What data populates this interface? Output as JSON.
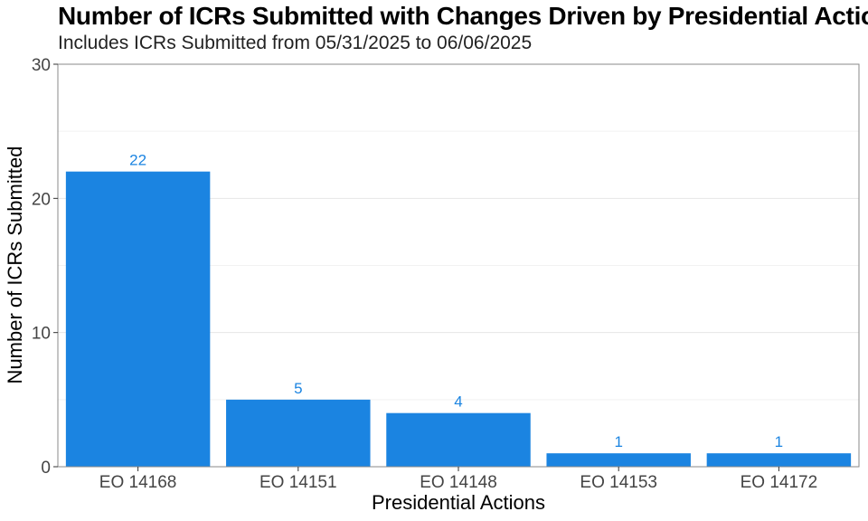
{
  "chart_data": {
    "type": "bar",
    "title": "Number of ICRs Submitted with Changes Driven by Presidential Actions",
    "subtitle": "Includes ICRs Submitted from 05/31/2025 to 06/06/2025",
    "categories": [
      "EO 14168",
      "EO 14151",
      "EO 14148",
      "EO 14153",
      "EO 14172"
    ],
    "values": [
      22,
      5,
      4,
      1,
      1
    ],
    "data_labels": [
      "22",
      "5",
      "4",
      "1",
      "1"
    ],
    "xlabel": "Presidential Actions",
    "ylabel": "Number of ICRs Submitted",
    "ylim": [
      0,
      30
    ],
    "yticks": [
      0,
      10,
      20,
      30
    ],
    "grid": true,
    "legend": "none",
    "colors": {
      "bar": "#1b84e1",
      "data_label": "#1b84e1",
      "grid_major": "#e6e6e6",
      "grid_minor": "#f2f2f2",
      "panel_border": "#8a8a8a"
    }
  }
}
